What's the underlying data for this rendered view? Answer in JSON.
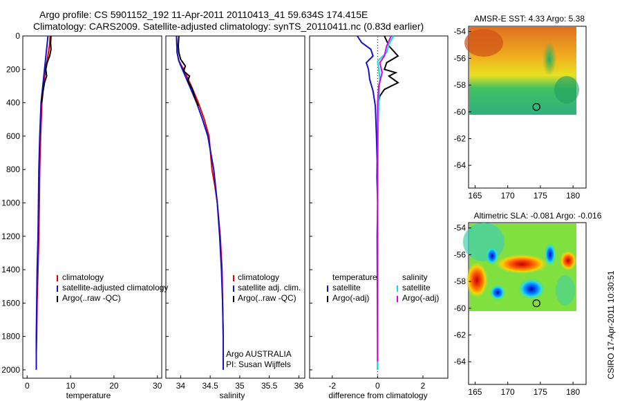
{
  "header": {
    "line1": "Argo profile: CS 5901152_192 11-Apr-2011 20110413_41 59.634S 174.415E",
    "line2": "Climatology: CARS2009. Satellite-adjusted climatology: synTS_20110411.nc (0.83d earlier)"
  },
  "colors": {
    "climatology": "#e00000",
    "satellite": "#1010d0",
    "argo": "#000000",
    "satellite_diff": "#00e0e0",
    "argo_adj": "#e000e0"
  },
  "chart_data": [
    {
      "id": "temperature",
      "type": "line",
      "xlabel": "temperature",
      "xlim": [
        -1,
        31
      ],
      "ylim": [
        2050,
        0
      ],
      "xticks": [
        0,
        10,
        20,
        30
      ],
      "yticks": [
        0,
        200,
        400,
        600,
        800,
        1000,
        1200,
        1400,
        1600,
        1800,
        2000
      ],
      "legend": [
        "climatology",
        "satellite-adjusted climatology",
        "Argo(..raw -QC)"
      ],
      "series": [
        {
          "key": "climatology",
          "points": [
            [
              5.3,
              0
            ],
            [
              5.2,
              50
            ],
            [
              4.6,
              150
            ],
            [
              4.2,
              200
            ],
            [
              3.8,
              300
            ],
            [
              3.4,
              400
            ],
            [
              3.1,
              600
            ],
            [
              2.9,
              800
            ],
            [
              2.8,
              1000
            ],
            [
              2.7,
              1200
            ],
            [
              2.5,
              1400
            ],
            [
              2.3,
              1600
            ],
            [
              2.2,
              1800
            ],
            [
              2.1,
              1900
            ]
          ]
        },
        {
          "key": "satellite",
          "points": [
            [
              4.8,
              0
            ],
            [
              4.6,
              50
            ],
            [
              4.4,
              100
            ],
            [
              4.2,
              150
            ],
            [
              4.0,
              200
            ],
            [
              3.6,
              300
            ],
            [
              3.2,
              400
            ],
            [
              2.9,
              600
            ],
            [
              2.7,
              800
            ],
            [
              2.6,
              1000
            ],
            [
              2.5,
              1200
            ],
            [
              2.3,
              1400
            ],
            [
              2.2,
              1600
            ],
            [
              2.1,
              1800
            ],
            [
              2.1,
              2000
            ]
          ]
        },
        {
          "key": "argo",
          "points": [
            [
              5.5,
              0
            ],
            [
              5.4,
              40
            ],
            [
              5.5,
              80
            ],
            [
              5.2,
              120
            ],
            [
              4.6,
              160
            ],
            [
              4.3,
              200
            ],
            [
              4.5,
              240
            ],
            [
              4.0,
              280
            ],
            [
              3.6,
              340
            ],
            [
              3.3,
              400
            ]
          ]
        }
      ]
    },
    {
      "id": "salinity",
      "type": "line",
      "xlabel": "salinity",
      "xlim": [
        33.75,
        36.1
      ],
      "ylim": [
        2050,
        0
      ],
      "xticks": [
        34,
        34.5,
        35,
        35.5,
        36
      ],
      "legend": [
        "climatology",
        "satellite adj. clim.",
        "Argo(..raw -QC)"
      ],
      "annotation": [
        "Argo AUSTRALIA",
        "PI: Susan Wijffels"
      ],
      "series": [
        {
          "key": "climatology",
          "points": [
            [
              33.93,
              0
            ],
            [
              33.94,
              100
            ],
            [
              33.97,
              150
            ],
            [
              34.05,
              200
            ],
            [
              34.18,
              300
            ],
            [
              34.3,
              400
            ],
            [
              34.4,
              500
            ],
            [
              34.48,
              600
            ],
            [
              34.53,
              800
            ],
            [
              34.58,
              900
            ],
            [
              34.62,
              1000
            ],
            [
              34.67,
              1200
            ],
            [
              34.7,
              1400
            ],
            [
              34.71,
              1600
            ],
            [
              34.72,
              1800
            ],
            [
              34.72,
              1900
            ]
          ]
        },
        {
          "key": "satellite",
          "points": [
            [
              33.93,
              0
            ],
            [
              33.94,
              100
            ],
            [
              33.97,
              150
            ],
            [
              34.03,
              200
            ],
            [
              34.15,
              300
            ],
            [
              34.27,
              400
            ],
            [
              34.37,
              500
            ],
            [
              34.46,
              600
            ],
            [
              34.56,
              800
            ],
            [
              34.62,
              1000
            ],
            [
              34.66,
              1200
            ],
            [
              34.69,
              1400
            ],
            [
              34.71,
              1600
            ],
            [
              34.72,
              1800
            ],
            [
              34.72,
              2000
            ]
          ]
        },
        {
          "key": "argo",
          "points": [
            [
              33.97,
              0
            ],
            [
              33.96,
              60
            ],
            [
              33.97,
              100
            ],
            [
              34.0,
              140
            ],
            [
              34.08,
              180
            ],
            [
              34.05,
              210
            ],
            [
              34.15,
              240
            ],
            [
              34.12,
              270
            ],
            [
              34.2,
              320
            ],
            [
              34.25,
              380
            ],
            [
              34.3,
              420
            ]
          ]
        }
      ]
    },
    {
      "id": "difference",
      "type": "line",
      "xlabel": "difference from climatology",
      "xlim": [
        -3,
        3.1
      ],
      "ylim": [
        2050,
        0
      ],
      "xticks": [
        -2,
        0,
        2
      ],
      "legend_left": [
        "temperature",
        "satellite",
        "Argo(-adj)"
      ],
      "legend_right": [
        "salinity",
        "satellite",
        "Argo(-adj)"
      ],
      "series": [
        {
          "key": "satellite",
          "points": [
            [
              -0.9,
              0
            ],
            [
              -0.7,
              40
            ],
            [
              -0.3,
              80
            ],
            [
              -0.2,
              120
            ],
            [
              -0.5,
              160
            ],
            [
              -0.4,
              200
            ],
            [
              -0.35,
              260
            ],
            [
              -0.2,
              330
            ],
            [
              -0.1,
              420
            ],
            [
              -0.05,
              600
            ],
            [
              -0.02,
              750
            ],
            [
              -0.03,
              850
            ],
            [
              0.0,
              1000
            ],
            [
              -0.02,
              1200
            ],
            [
              0,
              2000
            ]
          ]
        },
        {
          "key": "argo",
          "points": [
            [
              0.3,
              0
            ],
            [
              0.5,
              60
            ],
            [
              0.9,
              120
            ],
            [
              0.4,
              160
            ],
            [
              0.3,
              200
            ],
            [
              0.8,
              220
            ],
            [
              0.5,
              240
            ],
            [
              0.9,
              280
            ],
            [
              0.3,
              320
            ],
            [
              0.1,
              360
            ],
            [
              0,
              420
            ]
          ]
        },
        {
          "key": "satellite_diff",
          "points": [
            [
              0.7,
              0
            ],
            [
              0.5,
              50
            ],
            [
              0.4,
              100
            ],
            [
              0.0,
              150
            ],
            [
              0.1,
              250
            ],
            [
              0.05,
              400
            ],
            [
              0.02,
              600
            ],
            [
              0.0,
              900
            ],
            [
              0.0,
              1200
            ],
            [
              0.0,
              1600
            ],
            [
              0.0,
              2000
            ]
          ]
        },
        {
          "key": "argo_adj",
          "points": [
            [
              0.6,
              0
            ],
            [
              0.4,
              60
            ],
            [
              0.3,
              120
            ],
            [
              0.1,
              160
            ],
            [
              0.2,
              220
            ],
            [
              0.05,
              300
            ],
            [
              0.0,
              400
            ],
            [
              0.0,
              1000
            ],
            [
              0.0,
              1500
            ],
            [
              0.0,
              1950
            ]
          ]
        }
      ]
    },
    {
      "id": "sst_map",
      "type": "heatmap",
      "title": "AMSR-E SST: 4.33 Argo: 5.38",
      "xlim": [
        164,
        182
      ],
      "ylim": [
        -65.7,
        -53.6
      ],
      "xticks": [
        165,
        170,
        175,
        180
      ],
      "yticks": [
        -54,
        -56,
        -58,
        -60,
        -62,
        -64
      ],
      "float_position": [
        174.4,
        -59.63
      ]
    },
    {
      "id": "sla_map",
      "type": "heatmap",
      "title": "Altimetric SLA: -0.081 Argo: -0.016",
      "xlim": [
        164,
        182
      ],
      "ylim": [
        -65.7,
        -53.6
      ],
      "xticks": [
        165,
        170,
        175,
        180
      ],
      "yticks": [
        -54,
        -56,
        -58,
        -60,
        -62,
        -64
      ],
      "float_position": [
        174.4,
        -59.63
      ]
    }
  ],
  "footer": {
    "stamp": "CSIRO 17-Apr-2011 10:30:51"
  }
}
